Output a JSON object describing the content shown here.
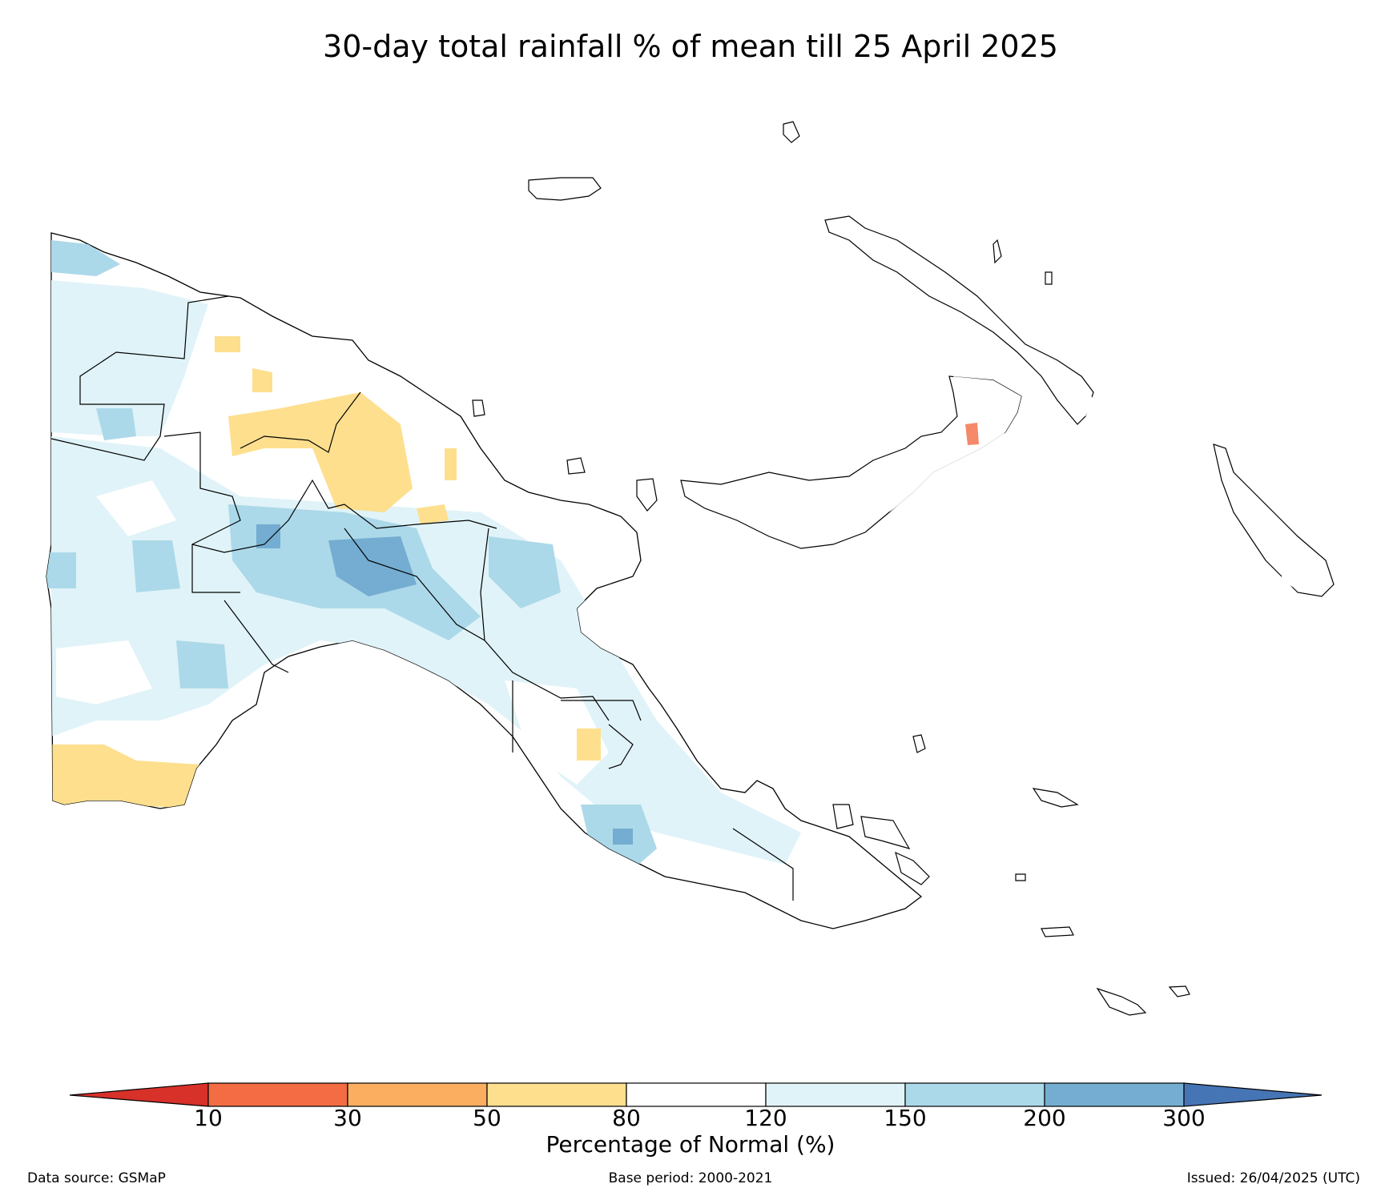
{
  "title": "30-day total rainfall % of mean till 25 April 2025",
  "colorbar": {
    "label": "Percentage of Normal (%)",
    "ticks": [
      "10",
      "30",
      "50",
      "80",
      "120",
      "150",
      "200",
      "300"
    ],
    "colors": {
      "under10": "#d7312a",
      "c10_30": "#f36c43",
      "c30_50": "#fbad60",
      "c50_80": "#fddf8e",
      "c80_120": "#ffffff",
      "c120_150": "#e0f3f8",
      "c150_200": "#abd9e9",
      "c200_300": "#74add1",
      "over300": "#4575b4"
    }
  },
  "footer": {
    "source": "Data source: GSMaP",
    "base_period": "Base period: 2000-2021",
    "issued": "Issued: 26/04/2025 (UTC)"
  }
}
